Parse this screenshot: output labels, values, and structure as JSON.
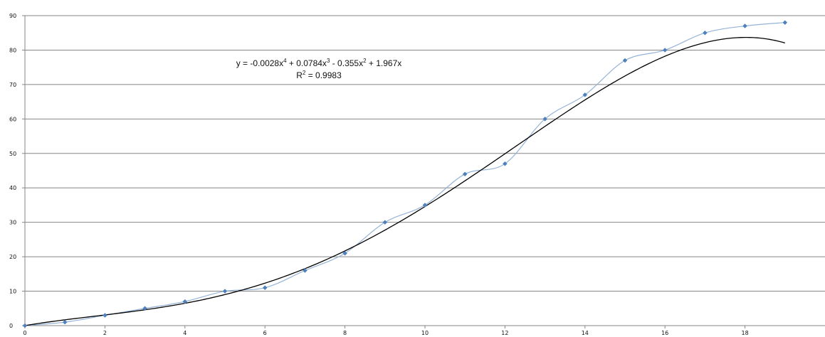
{
  "chart_data": {
    "type": "scatter",
    "x": [
      0,
      1,
      2,
      3,
      4,
      5,
      6,
      7,
      8,
      9,
      10,
      11,
      12,
      13,
      14,
      15,
      16,
      17,
      18,
      19
    ],
    "series": [
      {
        "values": [
          0,
          1,
          3,
          5,
          7,
          10,
          11,
          16,
          21,
          30,
          35,
          44,
          47,
          60,
          67,
          77,
          80,
          85,
          87,
          88
        ],
        "color": "#4f81bd",
        "line_color": "#95b3d7",
        "smoothed_line": true
      }
    ],
    "trendline": {
      "type": "polynomial",
      "order": 4,
      "coefficients": {
        "x4": -0.0028,
        "x3": 0.0784,
        "x2": -0.355,
        "x1": 1.967,
        "x0": 0
      },
      "color": "#000000",
      "equation": {
        "prefix": "y = -0.0028x",
        "p4": "4",
        "part2": " + 0.0784x",
        "p3": "3",
        "part3": " - 0.355x",
        "p2": "2",
        "part4": " + 1.967x"
      },
      "r_squared": {
        "prefix": "R",
        "sup": "2",
        "value": " = 0.9983"
      }
    },
    "xlim": [
      0,
      20
    ],
    "ylim": [
      0,
      90
    ],
    "x_ticks": [
      0,
      2,
      4,
      6,
      8,
      10,
      12,
      14,
      16,
      18
    ],
    "y_ticks": [
      0,
      10,
      20,
      30,
      40,
      50,
      60,
      70,
      80,
      90
    ],
    "grid": {
      "horizontal": true,
      "vertical": false
    },
    "title": "",
    "xlabel": "",
    "ylabel": ""
  }
}
